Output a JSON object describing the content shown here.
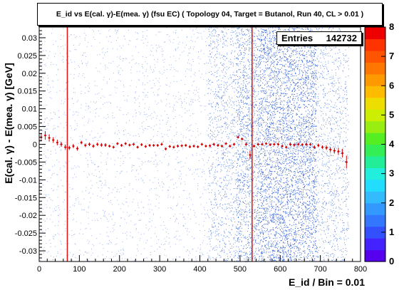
{
  "chart_data": {
    "type": "heatmap",
    "title": "E_id vs E(cal. γ)-E(mea. γ) (fsu EC) ( Topology 04, Target = Butanol, Run 40, CL > 0.01 )",
    "xlabel": "E_id / Bin = 0.01",
    "ylabel": "E(cal. γ) - E(mea. γ) [GeV]",
    "xlim": [
      0,
      800
    ],
    "ylim": [
      -0.033,
      0.033
    ],
    "x_ticks": [
      "0",
      "100",
      "200",
      "300",
      "400",
      "500",
      "600",
      "700",
      "800"
    ],
    "y_ticks": [
      "-0.03",
      "-0.025",
      "-0.02",
      "-0.015",
      "-0.01",
      "-0.005",
      "0",
      "0.005",
      "0.01",
      "0.015",
      "0.02",
      "0.025",
      "0.03"
    ],
    "colorbar": {
      "min": 0,
      "max": 8,
      "ticks": [
        "0",
        "1",
        "2",
        "3",
        "4",
        "5",
        "6",
        "7",
        "8"
      ]
    },
    "stats": {
      "label": "Entries",
      "value": "142732"
    },
    "cut_lines_x": [
      70,
      530
    ],
    "profile": {
      "x": [
        5,
        15,
        25,
        35,
        45,
        55,
        65,
        75,
        85,
        95,
        105,
        115,
        125,
        135,
        145,
        155,
        165,
        175,
        185,
        195,
        205,
        215,
        225,
        235,
        245,
        255,
        265,
        275,
        285,
        295,
        305,
        315,
        325,
        335,
        345,
        355,
        365,
        375,
        385,
        395,
        405,
        415,
        425,
        435,
        445,
        455,
        465,
        475,
        485,
        495,
        505,
        515,
        525,
        535,
        545,
        555,
        565,
        575,
        585,
        595,
        605,
        615,
        625,
        635,
        645,
        655,
        665,
        675,
        685,
        695,
        705,
        715,
        725,
        735,
        745,
        755,
        765
      ],
      "y": [
        0.002,
        0.0025,
        0.0018,
        0.0012,
        0.0005,
        0.0,
        -0.0008,
        -0.001,
        -0.0005,
        -0.0012,
        0.0005,
        -0.0003,
        0.0,
        -0.0005,
        0.0,
        -0.0002,
        -0.0002,
        -0.0005,
        -0.0008,
        0.0002,
        -0.0003,
        0.0002,
        -0.0002,
        0.0,
        -0.0008,
        -0.0001,
        -0.0006,
        -0.0003,
        -0.0003,
        -0.0003,
        0.0,
        -0.0013,
        -0.0006,
        -0.0008,
        -0.0005,
        -0.0004,
        -0.0003,
        -0.0007,
        -0.0005,
        -0.0007,
        0.0,
        -0.0005,
        -0.0004,
        0.0,
        -0.0003,
        -0.0005,
        0.0002,
        -0.0005,
        0.0,
        0.002,
        0.0015,
        0.0,
        -0.003,
        -0.0005,
        0.0,
        0.0,
        0.0002,
        -0.0001,
        0.0,
        0.0,
        -0.0005,
        -0.0008,
        0.0,
        -0.0002,
        0.0,
        -0.0001,
        0.0,
        0.0,
        -0.0008,
        -0.0003,
        -0.0008,
        -0.001,
        -0.0015,
        -0.0018,
        -0.002,
        -0.0025,
        -0.005
      ],
      "err": [
        0.0012,
        0.0012,
        0.001,
        0.0008,
        0.0008,
        0.0007,
        0.0007,
        0.0006,
        0.0006,
        0.0006,
        0.0005,
        0.0005,
        0.0005,
        0.0005,
        0.0005,
        0.0005,
        0.0005,
        0.0004,
        0.0004,
        0.0004,
        0.0004,
        0.0004,
        0.0004,
        0.0004,
        0.0004,
        0.0004,
        0.0004,
        0.0004,
        0.0004,
        0.0004,
        0.0004,
        0.0004,
        0.0004,
        0.0004,
        0.0004,
        0.0004,
        0.0004,
        0.0004,
        0.0004,
        0.0004,
        0.0004,
        0.0004,
        0.0004,
        0.0004,
        0.0004,
        0.0004,
        0.0004,
        0.0004,
        0.0004,
        0.0004,
        0.0004,
        0.0006,
        0.0012,
        0.0004,
        0.0004,
        0.0004,
        0.0004,
        0.0004,
        0.0004,
        0.0004,
        0.0004,
        0.0004,
        0.0004,
        0.0004,
        0.0004,
        0.0004,
        0.0004,
        0.0004,
        0.0005,
        0.0005,
        0.0005,
        0.0006,
        0.0007,
        0.0008,
        0.001,
        0.0012,
        0.0018
      ]
    },
    "density_regions": [
      {
        "x": [
          0,
          420
        ],
        "level": 0.3
      },
      {
        "x": [
          420,
          490
        ],
        "level": 1.0
      },
      {
        "x": [
          490,
          545
        ],
        "level": 1.6
      },
      {
        "x": [
          545,
          690
        ],
        "level": 2.0
      },
      {
        "x": [
          690,
          770
        ],
        "level": 0.9
      }
    ]
  }
}
